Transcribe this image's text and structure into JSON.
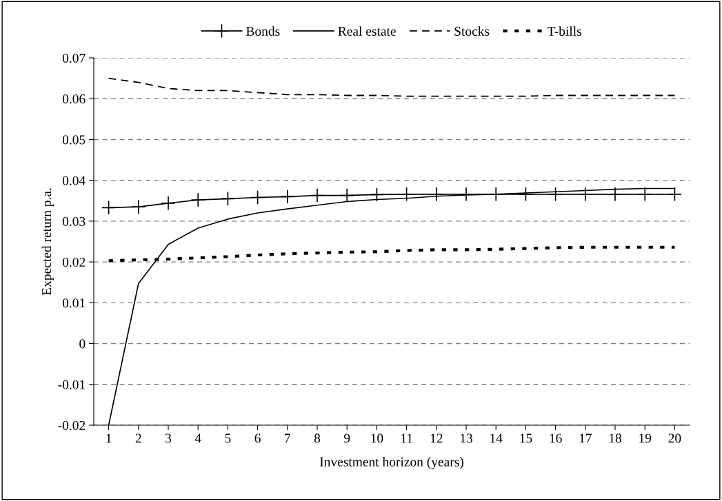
{
  "chart_data": {
    "type": "line",
    "xlabel": "Investment horizon (years)",
    "ylabel": "Expected return p.a.",
    "categories": [
      "1",
      "2",
      "3",
      "4",
      "5",
      "6",
      "7",
      "8",
      "9",
      "10",
      "11",
      "12",
      "13",
      "14",
      "15",
      "16",
      "17",
      "18",
      "19",
      "20"
    ],
    "series": [
      {
        "name": "Bonds",
        "color": "#000000",
        "line_style": "solid",
        "marker": "cross",
        "values": [
          0.0333,
          0.0335,
          0.0344,
          0.0352,
          0.0355,
          0.0358,
          0.036,
          0.0363,
          0.0363,
          0.0365,
          0.0366,
          0.0366,
          0.0366,
          0.0366,
          0.0366,
          0.0366,
          0.0366,
          0.0366,
          0.0366,
          0.0366
        ]
      },
      {
        "name": "Real estate",
        "color": "#000000",
        "line_style": "solid",
        "marker": "none",
        "values": [
          -0.02,
          0.0147,
          0.0243,
          0.0283,
          0.0305,
          0.032,
          0.033,
          0.0339,
          0.0348,
          0.0353,
          0.0356,
          0.0361,
          0.0364,
          0.0366,
          0.0369,
          0.0372,
          0.0375,
          0.0378,
          0.038,
          0.038
        ]
      },
      {
        "name": "Stocks",
        "color": "#000000",
        "line_style": "dashed",
        "marker": "none",
        "values": [
          0.065,
          0.064,
          0.0625,
          0.062,
          0.062,
          0.0615,
          0.061,
          0.061,
          0.0608,
          0.0608,
          0.0606,
          0.0606,
          0.0606,
          0.0606,
          0.0606,
          0.0608,
          0.0608,
          0.0608,
          0.0608,
          0.0608
        ]
      },
      {
        "name": "T-bills",
        "color": "#000000",
        "line_style": "dotted",
        "marker": "none",
        "values": [
          0.0203,
          0.0205,
          0.0207,
          0.021,
          0.0213,
          0.0217,
          0.022,
          0.0222,
          0.0224,
          0.0225,
          0.0228,
          0.023,
          0.023,
          0.0231,
          0.0233,
          0.0235,
          0.0236,
          0.0236,
          0.0236,
          0.0236
        ]
      }
    ],
    "ylim": [
      -0.02,
      0.07
    ],
    "yticks": [
      -0.02,
      -0.01,
      0,
      0.01,
      0.02,
      0.03,
      0.04,
      0.05,
      0.06,
      0.07
    ],
    "grid": "y",
    "legend": "top"
  }
}
